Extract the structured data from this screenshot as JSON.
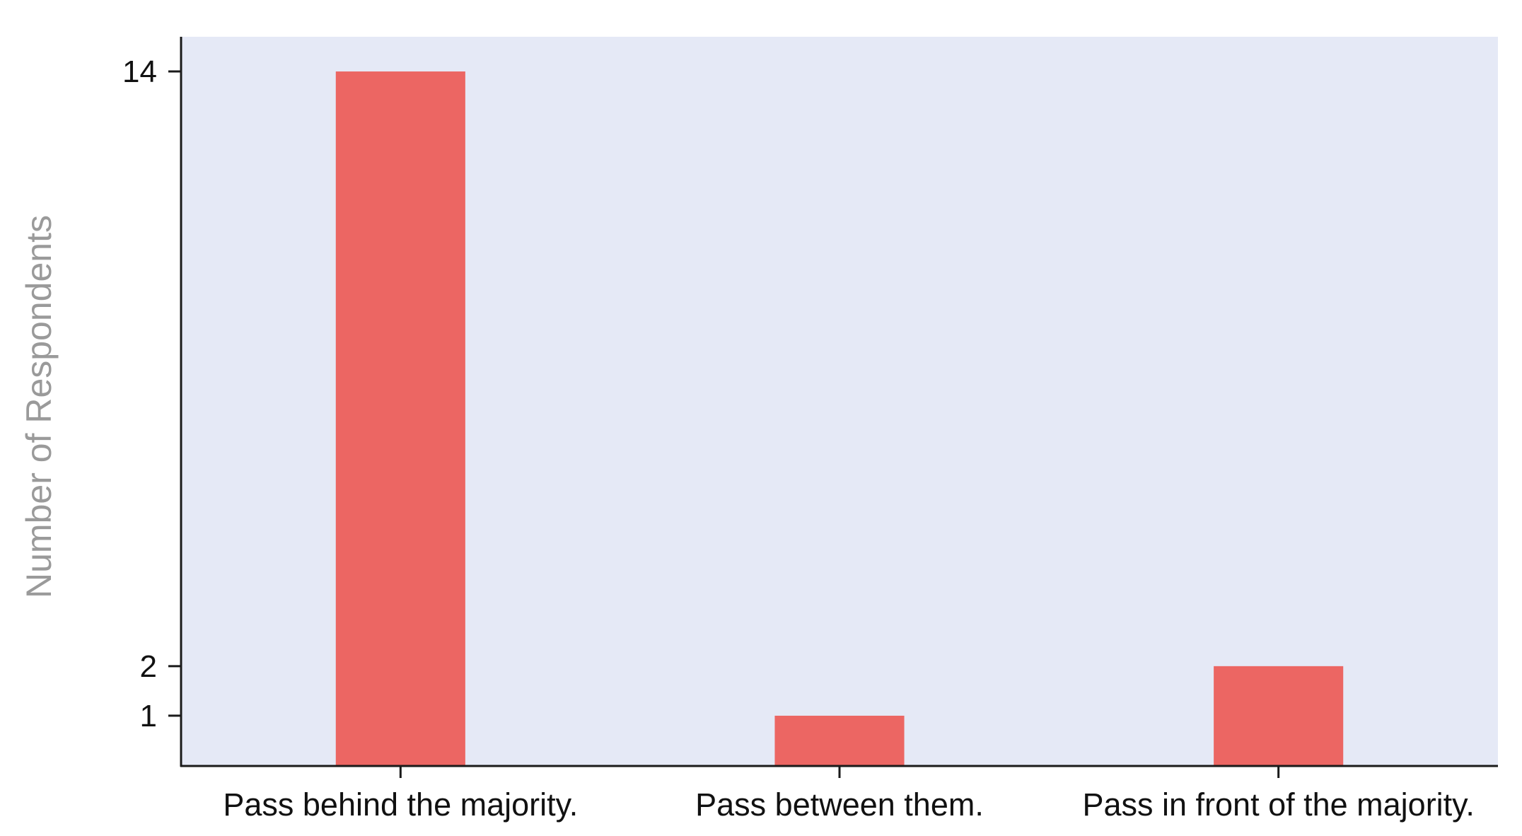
{
  "chart_data": {
    "type": "bar",
    "title": "",
    "xlabel": "",
    "ylabel": "Number of Respondents",
    "categories": [
      "Pass behind the majority.",
      "Pass between them.",
      "Pass in front of the majority."
    ],
    "values": [
      14,
      1,
      2
    ],
    "yticks": [
      1,
      2,
      14
    ],
    "ylim": [
      0,
      14.7
    ],
    "grid": false,
    "legend": "none",
    "colors": {
      "bar": "#ec6663",
      "plot_background": "#e5e9f6",
      "axis": "#1a1a1a"
    }
  }
}
